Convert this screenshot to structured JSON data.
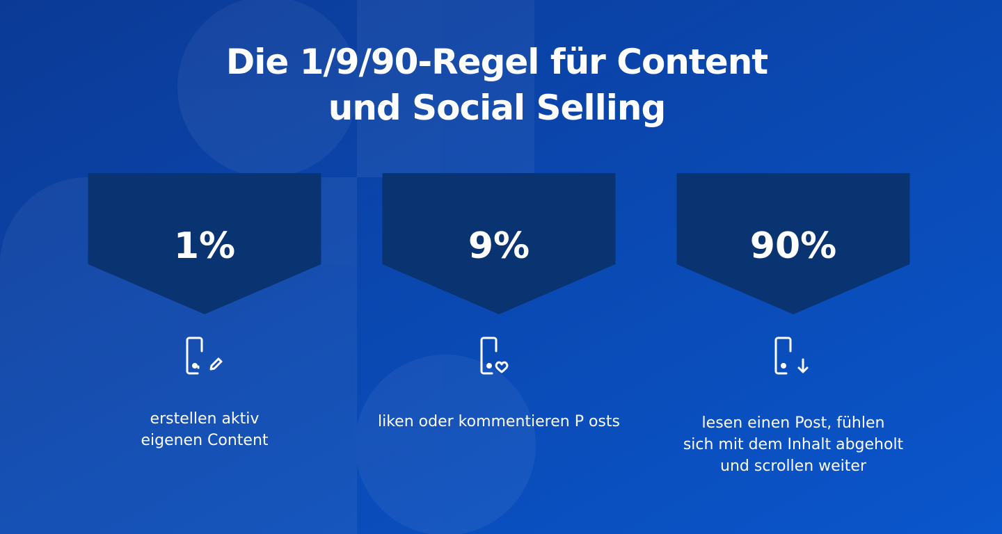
{
  "header": {
    "title_lines": [
      "Die 1/9/90-Regel für Content",
      "und Social Selling"
    ]
  },
  "items": [
    {
      "percent": "1%",
      "description_lines": [
        "erstellen aktiv",
        "eigenen Content"
      ]
    },
    {
      "percent": "9%",
      "description_lines": [
        "liken oder kommentieren P osts"
      ]
    },
    {
      "percent": "90%",
      "description_lines": [
        "lesen einen Post, fühlen",
        "sich mit dem Inhalt abgeholt",
        "und scrollen weiter"
      ]
    }
  ]
}
